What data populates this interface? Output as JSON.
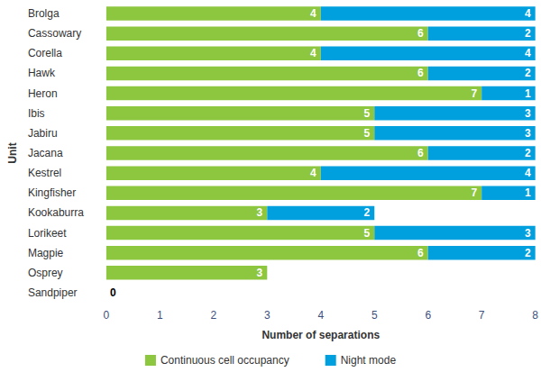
{
  "chart_data": {
    "type": "bar",
    "orientation": "horizontal",
    "stacked": true,
    "data_labels": true,
    "grid": false,
    "legend": "bottom",
    "x_label": "Number of separations",
    "y_label": "Unit",
    "categories": [
      "Brolga",
      "Cassowary",
      "Corella",
      "Hawk",
      "Heron",
      "Ibis",
      "Jabiru",
      "Jacana",
      "Kestrel",
      "Kingfisher",
      "Kookaburra",
      "Lorikeet",
      "Magpie",
      "Osprey",
      "Sandpiper"
    ],
    "series": [
      {
        "name": "Continuous cell occupancy",
        "color": "#8dc63f",
        "values": [
          4,
          6,
          4,
          6,
          7,
          5,
          5,
          6,
          4,
          7,
          3,
          5,
          6,
          3,
          0
        ]
      },
      {
        "name": "Night mode",
        "color": "#00a0df",
        "values": [
          4,
          2,
          4,
          2,
          1,
          3,
          3,
          2,
          4,
          1,
          2,
          3,
          2,
          null,
          null
        ]
      }
    ],
    "xlim": [
      0,
      8
    ],
    "xticks": [
      0,
      1,
      2,
      3,
      4,
      5,
      6,
      7,
      8
    ]
  }
}
